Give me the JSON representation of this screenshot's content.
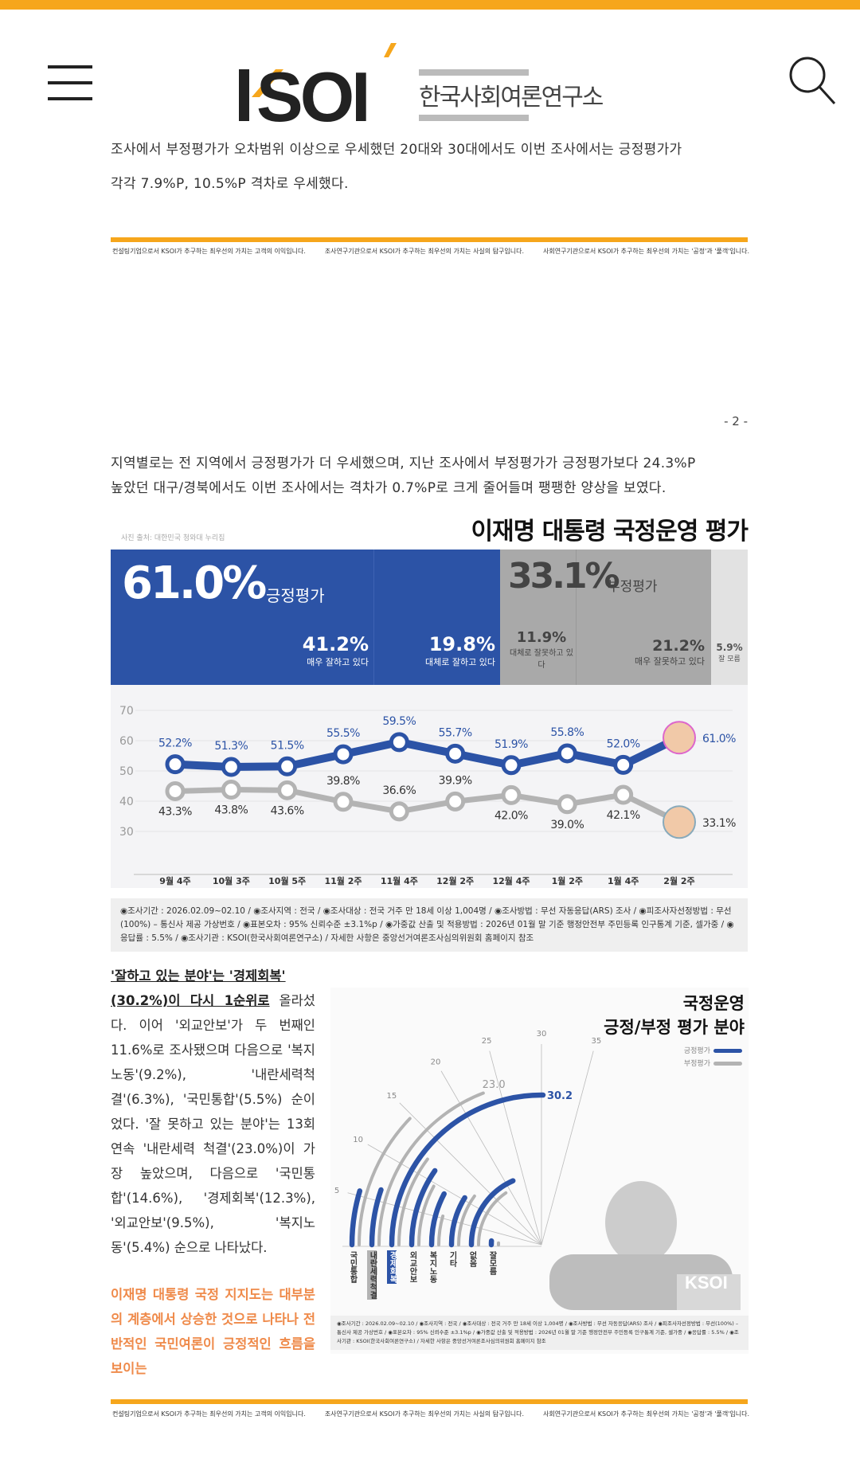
{
  "header": {
    "logo_text": "KSOI",
    "logo_subtitle": "한국사회여론연구소",
    "menu_icon": "hamburger-icon",
    "search_icon": "search-icon"
  },
  "colors": {
    "accent": "#f6a61c",
    "positive": "#2c53a6",
    "negative": "#a9a9a9",
    "highlight_text": "#ef8a4a"
  },
  "page1": {
    "cut_line": "조사에서 부정평가가 오차범위 이상으로 우세했던 20대와 30대에서도 이번 조사에서는 긍정평가가",
    "line2": "각각 7.9%P, 10.5%P 격차로 우세했다."
  },
  "footer": [
    "컨설팅기업으로서 KSOI가 추구하는 최우선의 가치는 고객의 이익입니다.",
    "조사연구기관으로서 KSOI가 추구하는 최우선의 가치는 사실의 탐구입니다.",
    "사회연구기관으로서 KSOI가 추구하는 최우선의 가치는 '공정'과 '풀객'입니다."
  ],
  "page_number": "- 2 -",
  "paragraph": [
    "지역별로는 전 지역에서 긍정평가가 더 우세했으며, 지난 조사에서 부정평가가 긍정평가보다 24.3%P",
    "높았던 대구/경북에서도 이번 조사에서는 격차가 0.7%P로 크게 줄어들며 팽팽한 양상을 보였다."
  ],
  "infographic": {
    "title": "이재명 대통령 국정운영 평가",
    "photo_credit": "사진 출처: 대한민국 청와대 누리집",
    "positive": {
      "value": "61.0%",
      "label": "긍정평가"
    },
    "negative": {
      "value": "33.1%",
      "label": "부정평가"
    },
    "breakdown": [
      {
        "value": "41.2%",
        "label": "매우 잘하고 있다"
      },
      {
        "value": "19.8%",
        "label": "대체로 잘하고 있다"
      },
      {
        "value": "11.9%",
        "label": "대체로 잘못하고 있다"
      },
      {
        "value": "21.2%",
        "label": "매우 잘못하고 있다"
      },
      {
        "value": "5.9%",
        "label": "잘 모름"
      }
    ],
    "note": "◉조사기간 : 2026.02.09~02.10 / ◉조사지역 : 전국 / ◉조사대상 : 전국 거주 만 18세 이상 1,004명 / ◉조사방법 : 무선 자동응답(ARS) 조사 / ◉피조사자선정방법 : 무선(100%) – 통신사 제공 가상번호 / ◉표본오차 : 95% 신뢰수준 ±3.1%p / ◉가중값 산출 및 적용방법 : 2026년 01월 말 기준 행정안전부 주민등록 인구통계 기준, 셀가중 / ◉응답률 : 5.5% / ◉조사기관 : KSOI(한국사회여론연구소) / 자세한 사항은 중앙선거여론조사심의위원회 홈페이지 참조"
  },
  "chart_data": [
    {
      "type": "line",
      "categories": [
        "9월 4주",
        "10월 3주",
        "10월 5주",
        "11월 2주",
        "11월 4주",
        "12월 2주",
        "12월 4주",
        "1월 2주",
        "1월 4주",
        "2월 2주"
      ],
      "yticks": [
        70,
        60,
        50,
        40,
        30
      ],
      "ylim": [
        30,
        70
      ],
      "grid": true,
      "series": [
        {
          "values": [
            52.2,
            51.3,
            51.5,
            55.5,
            59.5,
            55.7,
            51.9,
            55.8,
            52.0,
            61.0
          ],
          "labels": [
            "52.2%",
            "51.3%",
            "51.5%",
            "55.5%",
            "59.5%",
            "55.7%",
            "51.9%",
            "55.8%",
            "52.0%",
            "61.0%"
          ],
          "color": "#2c53a6"
        },
        {
          "values": [
            43.3,
            43.8,
            43.6,
            39.8,
            36.6,
            39.9,
            42.0,
            39.0,
            42.1,
            33.1
          ],
          "labels": [
            "43.3%",
            "43.8%",
            "43.6%",
            "39.8%",
            "36.6%",
            "39.9%",
            "42.0%",
            "39.0%",
            "42.1%",
            "33.1%"
          ],
          "color": "#b3b3b3"
        }
      ]
    },
    {
      "type": "radial-bar",
      "title_line1": "국정운영",
      "title_line2": "긍정/부정 평가 분야",
      "categories": [
        "국민통합",
        "내란세력척결",
        "경제회복",
        "외교안보",
        "복지노동",
        "기타",
        "없음",
        "잘모름"
      ],
      "axis_ticks": [
        5,
        10,
        15,
        20,
        25,
        30,
        35
      ],
      "series": [
        {
          "name": "긍정평가",
          "color": "#2c53a6",
          "values": [
            5.5,
            6.3,
            30.2,
            11.6,
            9.2,
            10.5,
            22.0,
            1.5
          ]
        },
        {
          "name": "부정평가",
          "color": "#b3b3b3",
          "values": [
            14.6,
            23.0,
            12.3,
            9.5,
            5.4,
            12.0,
            18.5,
            0.8
          ]
        }
      ],
      "data_labels": {
        "positive_max": "30.2",
        "negative_max": "23.0"
      },
      "highlight": {
        "positive": "경제회복",
        "negative": "내란세력척결"
      }
    }
  ],
  "analysis": {
    "u1": "'잘하고 있는 분야'는 '경제회복'",
    "u2": "(30.2%)이 다시 1순위로",
    "t1": " 올라섰다. 이어 '외교안보'가 두 번째인 11.6%로 조사됐으며 다음으로 '복지노동'(9.2%), '내란세력척결'(6.3%), '국민통합'(5.5%) 순이었다. '잘 못하고 있는 분야'는 13회 연속 '내란세력 척결'(23.0%)이 가장 높았으며, 다음으로 '국민통합'(14.6%), '경제회복'(12.3%), '외교안보'(9.5%), '복지노동'(5.4%) 순으로 나타났다.",
    "highlight": "이재명 대통령 국정 지지도는 대부분의 계층에서 상승한 것으로 나타나 전반적인 국민여론이 긍정적인 흐름을 보이는"
  },
  "watermark": "KSOI"
}
